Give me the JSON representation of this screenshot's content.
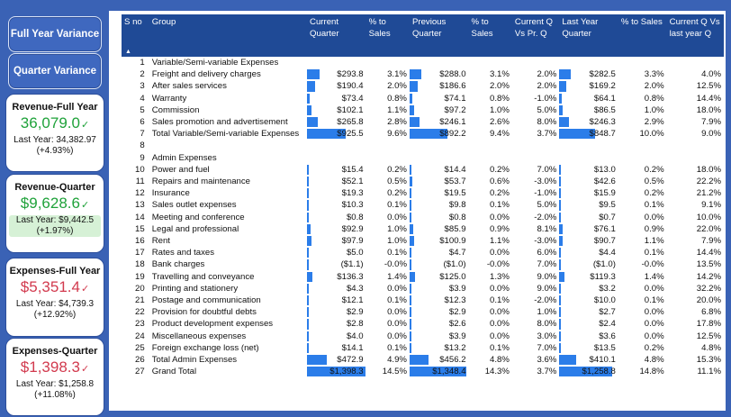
{
  "sidebar": {
    "full_year_variance": "Full Year Variance",
    "quarter_variance": "Quarter Variance"
  },
  "cards": [
    {
      "title": "Revenue-Full Year",
      "value": "36,079.0",
      "last_year": "Last Year: 34,382.97",
      "pct": "(+4.93%)",
      "tone": "good",
      "highlight": false
    },
    {
      "title": "Revenue-Quarter",
      "value": "$9,628.6",
      "last_year": "Last Year: $9,442.5",
      "pct": "(+1.97%)",
      "tone": "good",
      "highlight": true
    },
    {
      "title": "Expenses-Full Year",
      "value": "$5,351.4",
      "last_year": "Last Year: $4,739.3",
      "pct": "(+12.92%)",
      "tone": "bad",
      "highlight": false
    },
    {
      "title": "Expenses-Quarter",
      "value": "$1,398.3",
      "last_year": "Last Year: $1,258.8",
      "pct": "(+11.08%)",
      "tone": "bad",
      "highlight": false
    }
  ],
  "table": {
    "headers": [
      "S no",
      "Group",
      "Current Quarter",
      "% to Sales",
      "Previous Quarter",
      "% to Sales",
      "Current Q Vs Pr. Q",
      "Last Year Quarter",
      "% to Sales",
      "Current Q Vs last year Q"
    ],
    "rows": [
      [
        "1",
        "Variable/Semi-variable Expenses",
        "",
        "",
        "",
        "",
        "",
        "",
        "",
        ""
      ],
      [
        "2",
        "Freight and delivery charges",
        "$293.8",
        "3.1%",
        "$288.0",
        "3.1%",
        "2.0%",
        "$282.5",
        "3.3%",
        "4.0%"
      ],
      [
        "3",
        "After sales services",
        "$190.4",
        "2.0%",
        "$186.6",
        "2.0%",
        "2.0%",
        "$169.2",
        "2.0%",
        "12.5%"
      ],
      [
        "4",
        "Warranty",
        "$73.4",
        "0.8%",
        "$74.1",
        "0.8%",
        "-1.0%",
        "$64.1",
        "0.8%",
        "14.4%"
      ],
      [
        "5",
        "Commission",
        "$102.1",
        "1.1%",
        "$97.2",
        "1.0%",
        "5.0%",
        "$86.5",
        "1.0%",
        "18.0%"
      ],
      [
        "6",
        "Sales promotion and advertisement",
        "$265.8",
        "2.8%",
        "$246.1",
        "2.6%",
        "8.0%",
        "$246.3",
        "2.9%",
        "7.9%"
      ],
      [
        "7",
        "Total Variable/Semi-variable Expenses",
        "$925.5",
        "9.6%",
        "$892.2",
        "9.4%",
        "3.7%",
        "$848.7",
        "10.0%",
        "9.0%"
      ],
      [
        "8",
        "",
        "",
        "",
        "",
        "",
        "",
        "",
        "",
        ""
      ],
      [
        "9",
        "Admin Expenses",
        "",
        "",
        "",
        "",
        "",
        "",
        "",
        ""
      ],
      [
        "10",
        "Power and fuel",
        "$15.4",
        "0.2%",
        "$14.4",
        "0.2%",
        "7.0%",
        "$13.0",
        "0.2%",
        "18.0%"
      ],
      [
        "11",
        "Repairs and maintenance",
        "$52.1",
        "0.5%",
        "$53.7",
        "0.6%",
        "-3.0%",
        "$42.6",
        "0.5%",
        "22.2%"
      ],
      [
        "12",
        "Insurance",
        "$19.3",
        "0.2%",
        "$19.5",
        "0.2%",
        "-1.0%",
        "$15.9",
        "0.2%",
        "21.2%"
      ],
      [
        "13",
        "Sales outlet expenses",
        "$10.3",
        "0.1%",
        "$9.8",
        "0.1%",
        "5.0%",
        "$9.5",
        "0.1%",
        "9.1%"
      ],
      [
        "14",
        "Meeting and conference",
        "$0.8",
        "0.0%",
        "$0.8",
        "0.0%",
        "-2.0%",
        "$0.7",
        "0.0%",
        "10.0%"
      ],
      [
        "15",
        "Legal and professional",
        "$92.9",
        "1.0%",
        "$85.9",
        "0.9%",
        "8.1%",
        "$76.1",
        "0.9%",
        "22.0%"
      ],
      [
        "16",
        "Rent",
        "$97.9",
        "1.0%",
        "$100.9",
        "1.1%",
        "-3.0%",
        "$90.7",
        "1.1%",
        "7.9%"
      ],
      [
        "17",
        "Rates and taxes",
        "$5.0",
        "0.1%",
        "$4.7",
        "0.0%",
        "6.0%",
        "$4.4",
        "0.1%",
        "14.4%"
      ],
      [
        "18",
        "Bank charges",
        "($1.1)",
        "-0.0%",
        "($1.0)",
        "-0.0%",
        "7.0%",
        "($1.0)",
        "-0.0%",
        "13.5%"
      ],
      [
        "19",
        "Travelling and conveyance",
        "$136.3",
        "1.4%",
        "$125.0",
        "1.3%",
        "9.0%",
        "$119.3",
        "1.4%",
        "14.2%"
      ],
      [
        "20",
        "Printing and stationery",
        "$4.3",
        "0.0%",
        "$3.9",
        "0.0%",
        "9.0%",
        "$3.2",
        "0.0%",
        "32.2%"
      ],
      [
        "21",
        "Postage and communication",
        "$12.1",
        "0.1%",
        "$12.3",
        "0.1%",
        "-2.0%",
        "$10.0",
        "0.1%",
        "20.0%"
      ],
      [
        "22",
        "Provision for doubtful debts",
        "$2.9",
        "0.0%",
        "$2.9",
        "0.0%",
        "1.0%",
        "$2.7",
        "0.0%",
        "6.8%"
      ],
      [
        "23",
        "Product development expenses",
        "$2.8",
        "0.0%",
        "$2.6",
        "0.0%",
        "8.0%",
        "$2.4",
        "0.0%",
        "17.8%"
      ],
      [
        "24",
        "Miscellaneous expenses",
        "$4.0",
        "0.0%",
        "$3.9",
        "0.0%",
        "3.0%",
        "$3.6",
        "0.0%",
        "12.5%"
      ],
      [
        "25",
        "Foreign exchange loss (net)",
        "$14.1",
        "0.1%",
        "$13.2",
        "0.1%",
        "7.0%",
        "$13.5",
        "0.2%",
        "4.8%"
      ],
      [
        "26",
        "Total Admin Expenses",
        "$472.9",
        "4.9%",
        "$456.2",
        "4.8%",
        "3.6%",
        "$410.1",
        "4.8%",
        "15.3%"
      ],
      [
        "27",
        "Grand Total",
        "$1,398.3",
        "14.5%",
        "$1,348.4",
        "14.3%",
        "3.7%",
        "$1,258.8",
        "14.8%",
        "11.1%"
      ]
    ],
    "bar_max": 1398.3,
    "bar_color": "#2b7de9"
  }
}
